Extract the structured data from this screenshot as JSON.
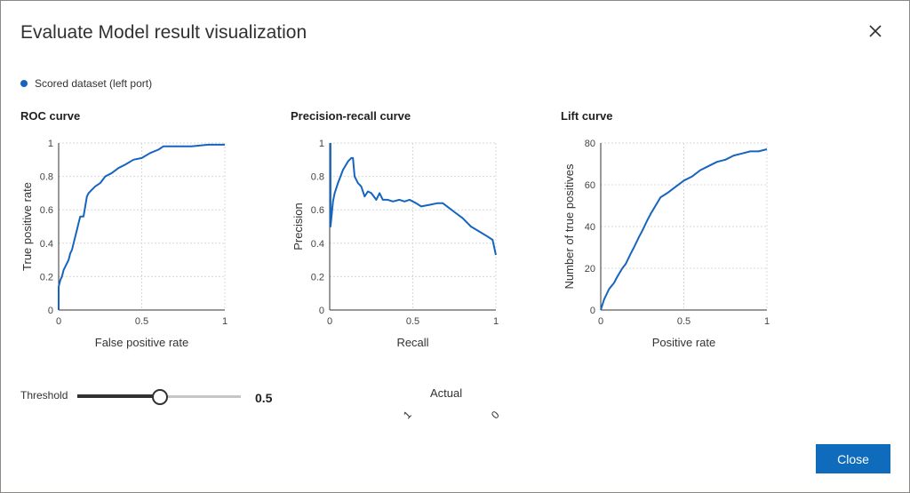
{
  "dialog": {
    "title": "Evaluate Model result visualization",
    "legend_label": "Scored dataset (left port)",
    "accent_color": "#1565c0",
    "close_icon": "close-icon"
  },
  "threshold": {
    "label": "Threshold",
    "value": "0.5",
    "fraction": 0.5
  },
  "confusion": {
    "title": "Actual",
    "ticks": [
      "1",
      "0"
    ]
  },
  "footer": {
    "close_label": "Close",
    "button_color": "#0f6cbd"
  },
  "chart_data": [
    {
      "type": "line",
      "title": "ROC curve",
      "xlabel": "False positive rate",
      "ylabel": "True positive rate",
      "xlim": [
        0,
        1
      ],
      "ylim": [
        0,
        1
      ],
      "xticks": [
        "0",
        "0.5",
        "1"
      ],
      "yticks": [
        "0",
        "0.2",
        "0.4",
        "0.6",
        "0.8",
        "1"
      ],
      "grid": true,
      "series": [
        {
          "x": [
            0,
            0,
            0.01,
            0.02,
            0.03,
            0.04,
            0.05,
            0.06,
            0.07,
            0.08,
            0.09,
            0.1,
            0.11,
            0.12,
            0.13,
            0.15,
            0.17,
            0.18,
            0.2,
            0.22,
            0.25,
            0.28,
            0.32,
            0.36,
            0.4,
            0.45,
            0.5,
            0.55,
            0.6,
            0.63,
            0.7,
            0.8,
            0.9,
            1.0
          ],
          "y": [
            0,
            0.14,
            0.18,
            0.2,
            0.24,
            0.26,
            0.28,
            0.3,
            0.34,
            0.36,
            0.4,
            0.44,
            0.48,
            0.52,
            0.56,
            0.56,
            0.68,
            0.7,
            0.72,
            0.74,
            0.76,
            0.8,
            0.82,
            0.85,
            0.87,
            0.9,
            0.91,
            0.94,
            0.96,
            0.98,
            0.98,
            0.98,
            0.99,
            0.99
          ]
        }
      ]
    },
    {
      "type": "line",
      "title": "Precision-recall curve",
      "xlabel": "Recall",
      "ylabel": "Precision",
      "xlim": [
        0,
        1
      ],
      "ylim": [
        0,
        1
      ],
      "xticks": [
        "0",
        "0.5",
        "1"
      ],
      "yticks": [
        "0",
        "0.2",
        "0.4",
        "0.6",
        "0.8",
        "1"
      ],
      "grid": true,
      "series": [
        {
          "x": [
            0.005,
            0.005,
            0.01,
            0.015,
            0.02,
            0.03,
            0.05,
            0.08,
            0.11,
            0.13,
            0.14,
            0.15,
            0.17,
            0.19,
            0.21,
            0.23,
            0.25,
            0.28,
            0.3,
            0.32,
            0.35,
            0.38,
            0.42,
            0.45,
            0.48,
            0.5,
            0.52,
            0.55,
            0.6,
            0.65,
            0.68,
            0.72,
            0.76,
            0.8,
            0.85,
            0.9,
            0.95,
            0.98,
            1.0
          ],
          "y": [
            1.0,
            0.5,
            0.55,
            0.6,
            0.65,
            0.7,
            0.76,
            0.84,
            0.89,
            0.91,
            0.91,
            0.8,
            0.76,
            0.74,
            0.68,
            0.71,
            0.7,
            0.66,
            0.7,
            0.66,
            0.66,
            0.65,
            0.66,
            0.65,
            0.66,
            0.65,
            0.64,
            0.62,
            0.63,
            0.64,
            0.64,
            0.61,
            0.58,
            0.55,
            0.5,
            0.47,
            0.44,
            0.42,
            0.33
          ]
        }
      ]
    },
    {
      "type": "line",
      "title": "Lift curve",
      "xlabel": "Positive rate",
      "ylabel": "Number of true positives",
      "xlim": [
        0,
        1
      ],
      "ylim": [
        0,
        80
      ],
      "xticks": [
        "0",
        "0.5",
        "1"
      ],
      "yticks": [
        "0",
        "20",
        "40",
        "60",
        "80"
      ],
      "grid": true,
      "series": [
        {
          "x": [
            0,
            0.02,
            0.05,
            0.08,
            0.1,
            0.13,
            0.15,
            0.18,
            0.2,
            0.23,
            0.25,
            0.28,
            0.3,
            0.33,
            0.36,
            0.4,
            0.45,
            0.5,
            0.55,
            0.6,
            0.65,
            0.7,
            0.75,
            0.8,
            0.85,
            0.9,
            0.95,
            1.0
          ],
          "y": [
            0,
            5,
            10,
            13,
            16,
            20,
            22,
            27,
            30,
            35,
            38,
            43,
            46,
            50,
            54,
            56,
            59,
            62,
            64,
            67,
            69,
            71,
            72,
            74,
            75,
            76,
            76,
            77
          ]
        }
      ]
    }
  ]
}
